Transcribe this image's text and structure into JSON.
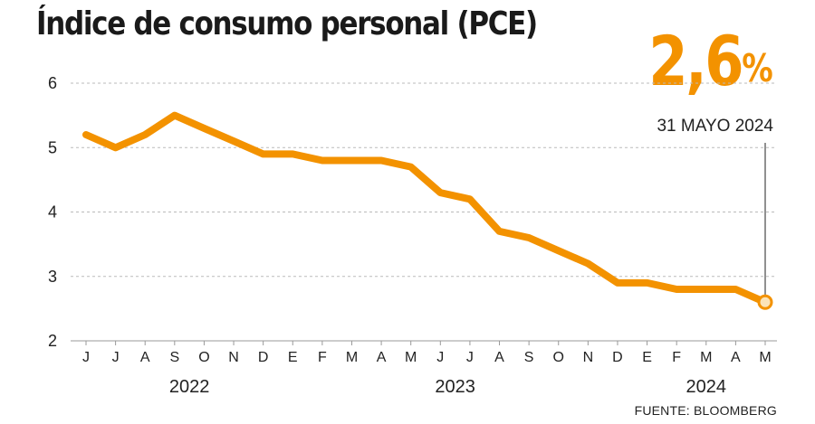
{
  "title": "Índice de consumo personal (PCE)",
  "highlight": {
    "value": "2,6",
    "unit": "%",
    "date": "31 MAYO 2024"
  },
  "source": "FUENTE: BLOOMBERG",
  "colors": {
    "line": "#f39200",
    "endpoint_fill": "#fbe3b8",
    "grid": "#bbbbbb"
  },
  "chart_data": {
    "type": "line",
    "title": "Índice de consumo personal (PCE)",
    "xlabel": "",
    "ylabel": "",
    "categories": [
      "J",
      "J",
      "A",
      "S",
      "O",
      "N",
      "D",
      "E",
      "F",
      "M",
      "A",
      "M",
      "J",
      "J",
      "A",
      "S",
      "O",
      "N",
      "D",
      "E",
      "F",
      "M",
      "A",
      "M"
    ],
    "years": [
      {
        "label": "2022",
        "center_index": 3.5
      },
      {
        "label": "2023",
        "center_index": 12.5
      },
      {
        "label": "2024",
        "center_index": 21
      }
    ],
    "series": [
      {
        "values": [
          5.2,
          5.0,
          5.2,
          5.5,
          5.3,
          5.1,
          4.9,
          4.9,
          4.8,
          4.8,
          4.8,
          4.7,
          4.3,
          4.2,
          3.7,
          3.6,
          3.4,
          3.2,
          2.9,
          2.9,
          2.8,
          2.8,
          2.8,
          2.6
        ]
      }
    ],
    "yticks": [
      2,
      3,
      4,
      5,
      6
    ],
    "ylim": [
      2,
      6
    ],
    "grid": true,
    "highlight_last_point": true
  }
}
